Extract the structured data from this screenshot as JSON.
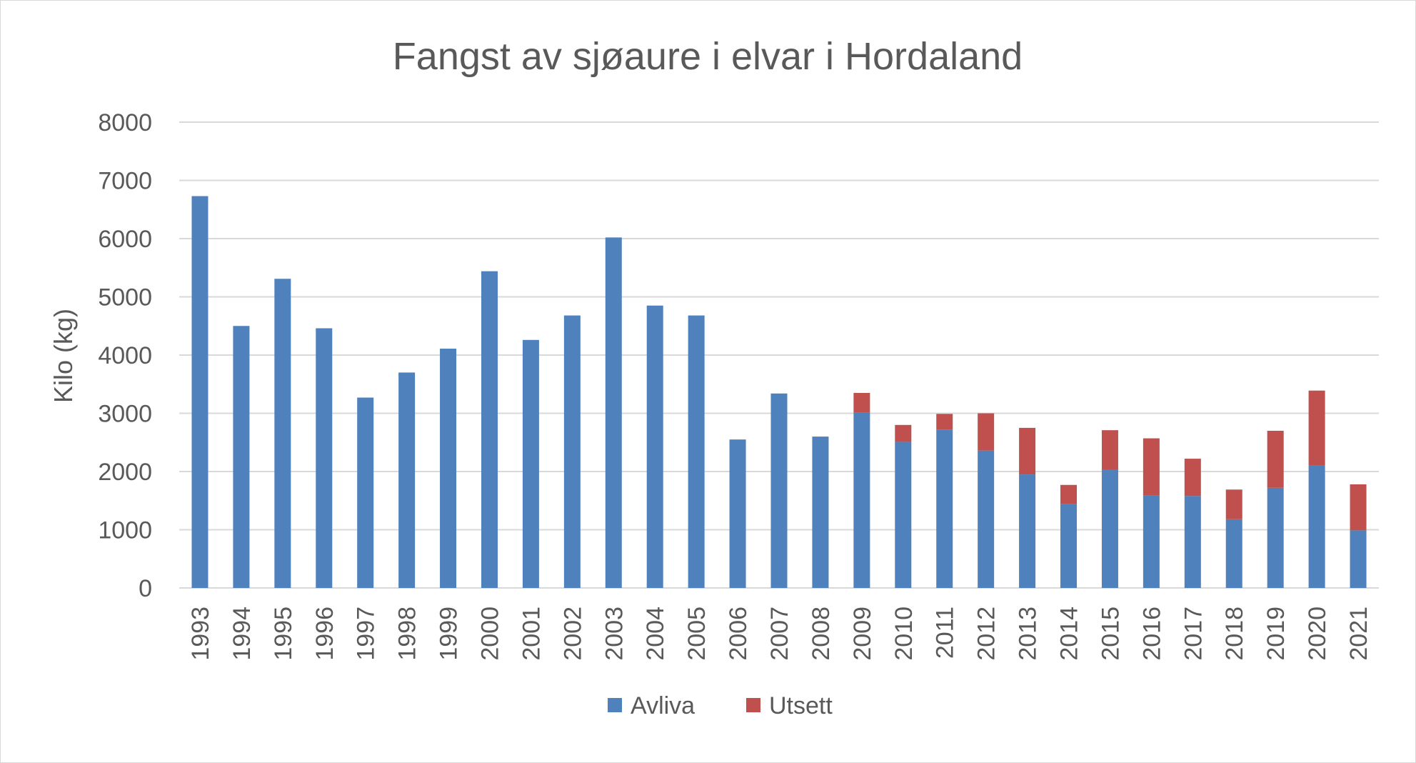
{
  "chart_data": {
    "type": "bar",
    "stacked": true,
    "title": "Fangst av sjøaure i elvar i Hordaland",
    "ylabel": "Kilo (kg)",
    "xlabel": "",
    "ylim": [
      0,
      8000
    ],
    "yticks": [
      0,
      1000,
      2000,
      3000,
      4000,
      5000,
      6000,
      7000,
      8000
    ],
    "grid": true,
    "legend_position": "bottom",
    "categories": [
      "1993",
      "1994",
      "1995",
      "1996",
      "1997",
      "1998",
      "1999",
      "2000",
      "2001",
      "2002",
      "2003",
      "2004",
      "2005",
      "2006",
      "2007",
      "2008",
      "2009",
      "2010",
      "2011",
      "2012",
      "2013",
      "2014",
      "2015",
      "2016",
      "2017",
      "2018",
      "2019",
      "2020",
      "2021"
    ],
    "series": [
      {
        "name": "Avliva",
        "color": "#4f81bd",
        "values": [
          6730,
          4500,
          5310,
          4460,
          3270,
          3700,
          4110,
          5440,
          4260,
          4680,
          6020,
          4850,
          4680,
          2550,
          3340,
          2600,
          3010,
          2510,
          2720,
          2360,
          1950,
          1440,
          2030,
          1590,
          1580,
          1180,
          1720,
          2110,
          990
        ]
      },
      {
        "name": "Utsett",
        "color": "#c0504d",
        "values": [
          0,
          0,
          0,
          0,
          0,
          0,
          0,
          0,
          0,
          0,
          0,
          0,
          0,
          0,
          0,
          0,
          340,
          290,
          270,
          640,
          800,
          330,
          680,
          980,
          640,
          510,
          980,
          1280,
          790
        ]
      }
    ]
  }
}
